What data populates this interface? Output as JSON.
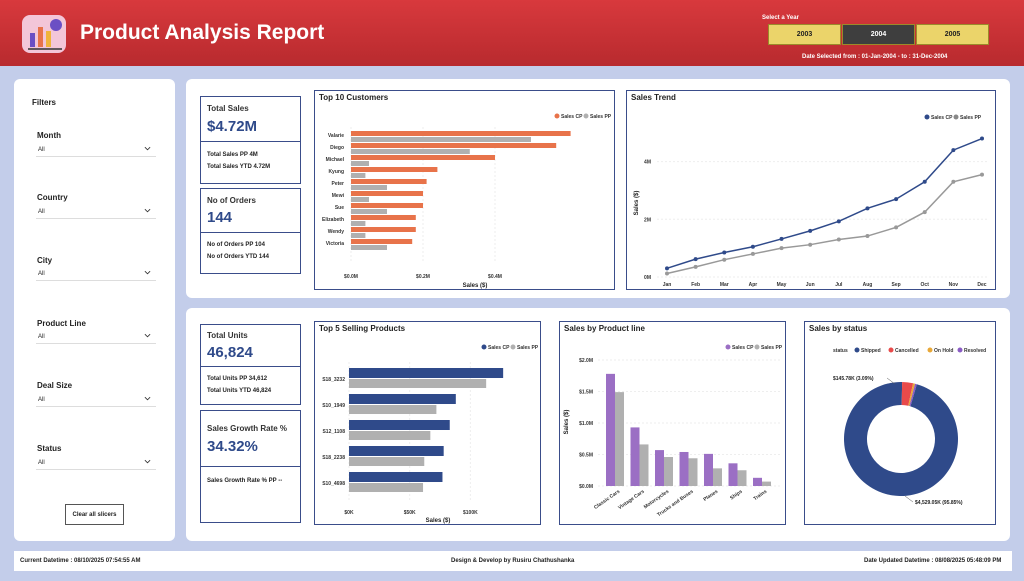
{
  "header": {
    "title": "Product Analysis Report",
    "year_label": "Select a Year",
    "years": [
      "2003",
      "2004",
      "2005"
    ],
    "selected_year": "2004",
    "date_selected": "Date Selected from : 01-Jan-2004 - to : 31-Dec-2004"
  },
  "colors": {
    "header": "#c8303a",
    "cp": "#2f4a8a",
    "pp": "#b0b0b0",
    "orange": "#e8734a",
    "purple": "#9b6fc4",
    "red": "#e84a4a"
  },
  "filters": {
    "title": "Filters",
    "items": [
      {
        "label": "Month",
        "value": "All"
      },
      {
        "label": "Country",
        "value": "All"
      },
      {
        "label": "City",
        "value": "All"
      },
      {
        "label": "Product Line",
        "value": "All"
      },
      {
        "label": "Deal Size",
        "value": "All"
      },
      {
        "label": "Status",
        "value": "All"
      }
    ],
    "clear_label": "Clear all slicers"
  },
  "kpi": {
    "total_sales": {
      "title": "Total Sales",
      "value": "$4.72M",
      "pp": "Total Sales PP 4M",
      "ytd": "Total Sales YTD 4.72M"
    },
    "orders": {
      "title": "No of Orders",
      "value": "144",
      "pp": "No of Orders PP 104",
      "ytd": "No of Orders YTD 144"
    },
    "units": {
      "title": "Total Units",
      "value": "46,824",
      "pp": "Total Units PP 34,612",
      "ytd": "Total Units YTD 46,824"
    },
    "growth": {
      "title": "Sales Growth Rate %",
      "value": "34.32%",
      "pp": "Sales Growth Rate % PP --"
    }
  },
  "chart_data": [
    {
      "type": "bar",
      "orientation": "horizontal",
      "title": "Top 10 Customers",
      "categories": [
        "Valarie",
        "Diego",
        "Michael",
        "Kyung",
        "Peter",
        "Mewi",
        "Sue",
        "Elizabeth",
        "Wendy",
        "Victoria"
      ],
      "series": [
        {
          "name": "Sales CP",
          "values": [
            0.61,
            0.57,
            0.4,
            0.24,
            0.21,
            0.2,
            0.2,
            0.18,
            0.18,
            0.17
          ]
        },
        {
          "name": "Sales PP",
          "values": [
            0.5,
            0.33,
            0.05,
            0.04,
            0.1,
            0.05,
            0.1,
            0.04,
            0.04,
            0.1
          ]
        }
      ],
      "xlabel": "Sales ($)",
      "xticks": [
        "$0.0M",
        "$0.2M",
        "$0.4M"
      ],
      "xlim": [
        0,
        0.65
      ]
    },
    {
      "type": "line",
      "title": "Sales Trend",
      "categories": [
        "Jan",
        "Feb",
        "Mar",
        "Apr",
        "May",
        "Jun",
        "Jul",
        "Aug",
        "Sep",
        "Oct",
        "Nov",
        "Dec"
      ],
      "series": [
        {
          "name": "Sales CP",
          "values": [
            0.3,
            0.62,
            0.85,
            1.05,
            1.32,
            1.6,
            1.93,
            2.38,
            2.7,
            3.3,
            4.4,
            4.8
          ]
        },
        {
          "name": "Sales PP",
          "values": [
            0.12,
            0.35,
            0.6,
            0.8,
            1.0,
            1.12,
            1.3,
            1.42,
            1.72,
            2.25,
            3.3,
            3.55
          ]
        }
      ],
      "ylabel": "Sales ($)",
      "yticks": [
        "0M",
        "2M",
        "4M"
      ],
      "ylim": [
        0,
        5.2
      ]
    },
    {
      "type": "bar",
      "orientation": "horizontal",
      "title": "Top 5 Selling Products",
      "categories": [
        "S18_3232",
        "S10_1949",
        "S12_1108",
        "S18_2238",
        "S10_4698"
      ],
      "series": [
        {
          "name": "Sales CP",
          "values": [
            127,
            88,
            83,
            78,
            77
          ]
        },
        {
          "name": "Sales PP",
          "values": [
            113,
            72,
            67,
            62,
            61
          ]
        }
      ],
      "xlabel": "Sales ($)",
      "xticks": [
        "$0K",
        "$50K",
        "$100K"
      ],
      "xlim": [
        0,
        145
      ]
    },
    {
      "type": "bar",
      "title": "Sales by Product line",
      "categories": [
        "Classic Cars",
        "Vintage Cars",
        "Motorcycles",
        "Trucks and Buses",
        "Planes",
        "Ships",
        "Trains"
      ],
      "series": [
        {
          "name": "Sales CP",
          "values": [
            1.78,
            0.93,
            0.57,
            0.54,
            0.51,
            0.36,
            0.13
          ]
        },
        {
          "name": "Sales PP",
          "values": [
            1.49,
            0.66,
            0.46,
            0.44,
            0.28,
            0.25,
            0.07
          ]
        }
      ],
      "ylabel": "Sales ($)",
      "yticks": [
        "$0.0M",
        "$0.5M",
        "$1.0M",
        "$1.5M",
        "$2.0M"
      ],
      "ylim": [
        0,
        2.0
      ]
    },
    {
      "type": "pie",
      "donut": true,
      "title": "Sales by status",
      "legend_title": "status",
      "categories": [
        "Shipped",
        "Cancelled",
        "On Hold",
        "Resolved"
      ],
      "values": [
        95.85,
        3.09,
        0.56,
        0.5
      ],
      "labels": {
        "cancelled": "$145.78K (3.09%)",
        "shipped": "$4,529.05K (95.85%)"
      },
      "colors": [
        "#2f4a8a",
        "#e84a4a",
        "#e8a838",
        "#8a5cc4"
      ]
    }
  ],
  "footer": {
    "current": "Current Datetime : 08/10/2025 07:54:55 AM",
    "design": "Design & Develop by Rusiru Chathushanka",
    "updated": "Date Updated Datetime : 08/08/2025 05:48:09 PM"
  }
}
